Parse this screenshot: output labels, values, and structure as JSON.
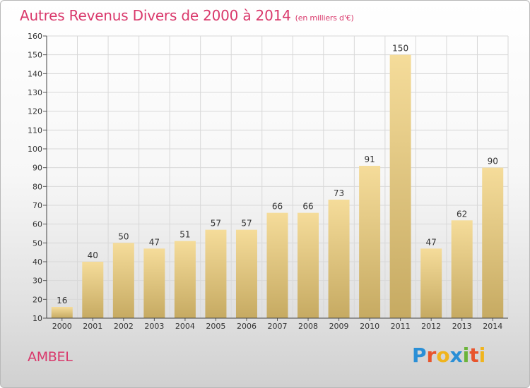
{
  "title": "Autres Revenus Divers de 2000 à 2014",
  "unit": "(en milliers d'€)",
  "commune": "AMBEL",
  "logo": {
    "text": "Proxiti",
    "letters": [
      "P",
      "r",
      "o",
      "x",
      "i",
      "t",
      "i"
    ],
    "colors": [
      "#2a8fd6",
      "#e8542c",
      "#f0b41d",
      "#2a8fd6",
      "#6bb43a",
      "#e8542c",
      "#f0b41d"
    ]
  },
  "colors": {
    "title": "#d9386b",
    "bar_light": "#f5dc9a",
    "bar_dark": "#c6aa62",
    "grid": "#d8d8d8"
  },
  "chart_data": {
    "type": "bar",
    "categories": [
      "2000",
      "2001",
      "2002",
      "2003",
      "2004",
      "2005",
      "2006",
      "2007",
      "2008",
      "2009",
      "2010",
      "2011",
      "2012",
      "2013",
      "2014"
    ],
    "values": [
      16,
      40,
      50,
      47,
      51,
      57,
      57,
      66,
      66,
      73,
      91,
      150,
      47,
      62,
      90
    ],
    "ylim": [
      10,
      160
    ],
    "yticks": [
      10,
      20,
      30,
      40,
      50,
      60,
      70,
      80,
      90,
      100,
      110,
      120,
      130,
      140,
      150,
      160
    ],
    "grid": true
  }
}
